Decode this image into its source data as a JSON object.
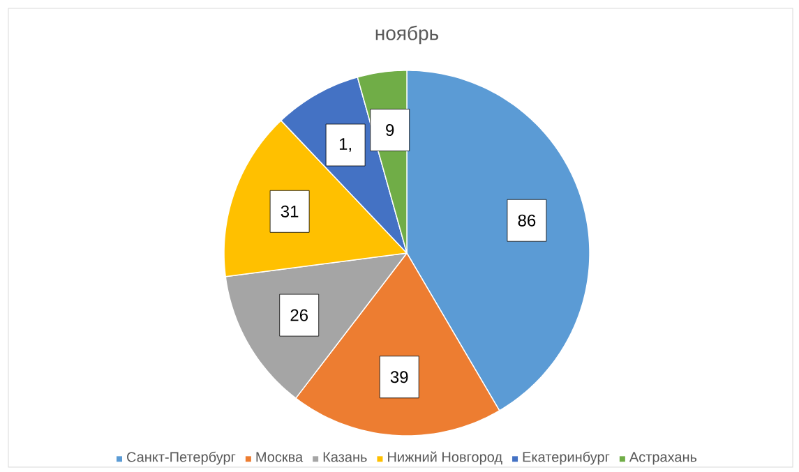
{
  "chart_data": {
    "type": "pie",
    "title": "ноябрь",
    "categories": [
      "Санкт-Петербург",
      "Москва",
      "Казань",
      "Нижний Новгород",
      "Екатеринбург",
      "Астрахань"
    ],
    "values": [
      86,
      39,
      26,
      31,
      16,
      9
    ],
    "value_labels": [
      "86",
      "39",
      "26",
      "31",
      null,
      "9"
    ],
    "annotations": [
      "1,"
    ],
    "colors": [
      "#5b9bd5",
      "#ed7d31",
      "#a5a5a5",
      "#ffc000",
      "#4472c4",
      "#70ad47"
    ],
    "legend": "bottom"
  }
}
